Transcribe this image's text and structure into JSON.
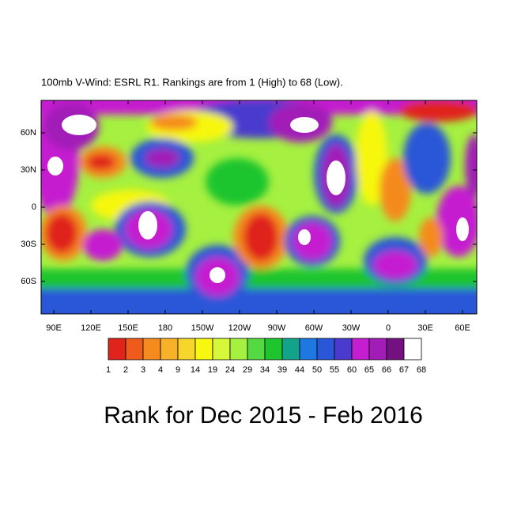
{
  "title": "100mb V-Wind: ESRL R1. Rankings are from 1 (High) to 68 (Low).",
  "caption": "Rank for Dec 2015 - Feb 2016",
  "map": {
    "lon_labels": [
      "90E",
      "120E",
      "150E",
      "180",
      "150W",
      "120W",
      "90W",
      "60W",
      "30W",
      "0",
      "30E",
      "60E"
    ],
    "lat_labels": [
      "60N",
      "30N",
      "0",
      "30S",
      "60S"
    ]
  },
  "colorbar": {
    "labels": [
      "1",
      "2",
      "3",
      "4",
      "9",
      "14",
      "19",
      "24",
      "29",
      "34",
      "39",
      "44",
      "50",
      "55",
      "60",
      "65",
      "66",
      "67",
      "68"
    ],
    "colors": [
      "#e0231b",
      "#ef5a1d",
      "#f58a1f",
      "#f7b22a",
      "#f6d62a",
      "#f7f70f",
      "#d7f73a",
      "#a5f040",
      "#55d942",
      "#1fc52f",
      "#12a38a",
      "#1e78e2",
      "#2a56d8",
      "#4a3acd",
      "#c51ed0",
      "#a21db8",
      "#72117f",
      "#ffffff"
    ]
  }
}
